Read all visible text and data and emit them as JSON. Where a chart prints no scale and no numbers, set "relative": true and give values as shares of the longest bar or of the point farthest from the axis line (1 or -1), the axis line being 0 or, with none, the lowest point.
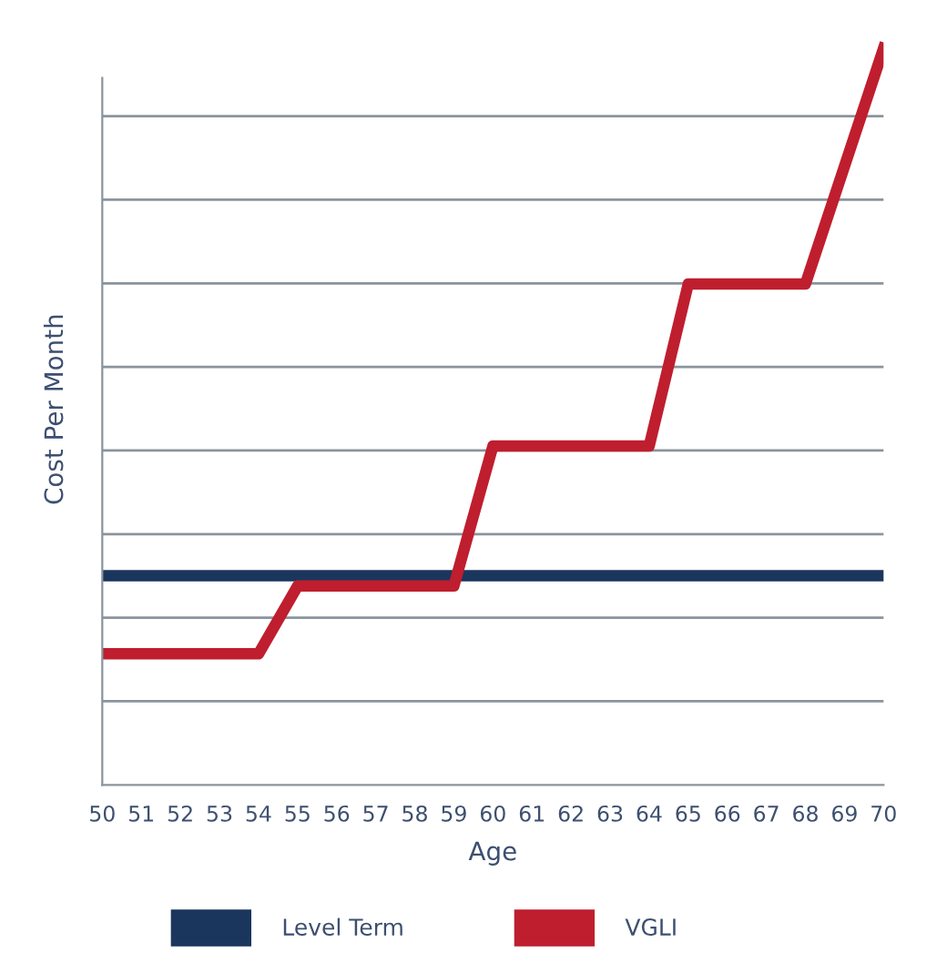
{
  "chart_data": {
    "type": "line",
    "xlabel": "Age",
    "ylabel": "Cost Per Month",
    "relative": true,
    "x": [
      50,
      54,
      55,
      59,
      60,
      64,
      65,
      68,
      70
    ],
    "xlim": [
      50,
      70
    ],
    "xticks": [
      50,
      51,
      52,
      53,
      54,
      55,
      56,
      57,
      58,
      59,
      60,
      61,
      62,
      63,
      64,
      65,
      66,
      67,
      68,
      69,
      70
    ],
    "series": [
      {
        "name": "Level Term",
        "color": "#1b365d",
        "x": [
          50,
          70
        ],
        "values": [
          0.284,
          0.284
        ]
      },
      {
        "name": "VGLI",
        "color": "#bf1e2e",
        "values": [
          0.178,
          0.178,
          0.27,
          0.27,
          0.46,
          0.46,
          0.68,
          0.68,
          1.0
        ]
      }
    ],
    "grid": "y",
    "legend": "bottom",
    "marker": "none",
    "line_style": "solid"
  }
}
